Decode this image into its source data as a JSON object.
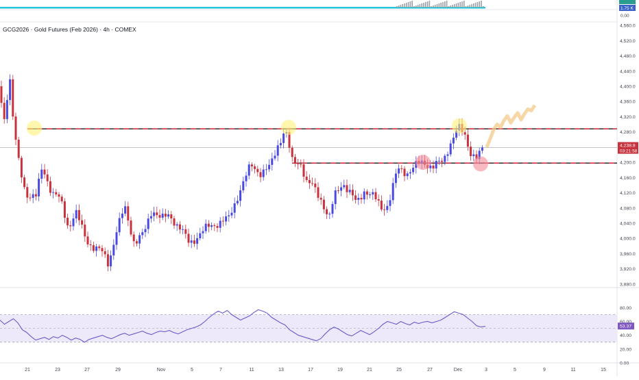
{
  "title": "GCG2026 · Gold Futures (Feb 2026) · 4h · COMEX",
  "colors": {
    "up": "#4a4ae0",
    "down": "#c8323c",
    "level_line": "#c8323c",
    "rsi_line": "#6a5acd",
    "rsi_band": "#ede9fb",
    "highlight_yellow": "#fff176",
    "highlight_red": "#f48c96",
    "forecast": "#f5c98a",
    "volume_teal": "#26c6da",
    "price_badge": "#c8323c",
    "rsi_badge": "#7e57c2",
    "volume_badge": "#3a62c8"
  },
  "volume_panel": {
    "labels": [
      "1.75 K",
      "0.00"
    ]
  },
  "price_axis": {
    "ticks": [
      "4,560.0",
      "4,520.0",
      "4,480.0",
      "4,440.0",
      "4,400.0",
      "4,360.0",
      "4,320.0",
      "4,280.0",
      "4,240.0",
      "4,200.0",
      "4,160.0",
      "4,120.0",
      "4,080.0",
      "4,040.0",
      "4,000.0",
      "3,960.0",
      "3,920.0",
      "3,880.0"
    ]
  },
  "current_price": {
    "value": "4,238.8",
    "countdown": "03:21:58"
  },
  "rsi_panel": {
    "ticks": [
      "80.00",
      "60.00",
      "40.00",
      "20.00",
      "0.00"
    ],
    "current": "53.37",
    "upper_band": 70,
    "lower_band": 30
  },
  "time_axis": {
    "labels": [
      "21",
      "23",
      "27",
      "29",
      "Nov",
      "5",
      "7",
      "11",
      "13",
      "17",
      "19",
      "21",
      "25",
      "27",
      "Dec",
      "3",
      "5",
      "9",
      "11",
      "15"
    ]
  },
  "chart_data": {
    "type": "candlestick",
    "title": "GCG2026 · Gold Futures (Feb 2026) · 4h · COMEX",
    "ylim": [
      3860,
      4580
    ],
    "levels": [
      {
        "price": 4288
      },
      {
        "price": 4198
      }
    ],
    "key_points": [
      {
        "date": "Oct 21",
        "price": 4290
      },
      {
        "date": "Oct 29",
        "price": 3934
      },
      {
        "date": "Nov 14",
        "price": 4290
      },
      {
        "date": "Nov 18",
        "price": 4040
      },
      {
        "date": "Nov 27",
        "price": 4198
      },
      {
        "date": "Dec 1",
        "price": 4292
      },
      {
        "date": "Dec 2",
        "price": 4196
      },
      {
        "date": "Dec 3",
        "price": 4238.8
      }
    ],
    "forecast_path_prices": [
      4240,
      4262,
      4286,
      4300,
      4292,
      4310,
      4322,
      4304,
      4318,
      4330,
      4312,
      4328,
      4340,
      4336,
      4350
    ],
    "rsi_values": [
      62,
      56,
      60,
      64,
      58,
      48,
      44,
      38,
      33,
      35,
      37,
      34,
      38,
      36,
      40,
      37,
      33,
      36,
      34,
      30,
      34,
      36,
      38,
      40,
      37,
      35,
      38,
      41,
      43,
      40,
      42,
      44,
      46,
      43,
      41,
      44,
      46,
      45,
      47,
      44,
      42,
      45,
      48,
      50,
      52,
      55,
      60,
      66,
      71,
      75,
      72,
      76,
      70,
      66,
      62,
      65,
      68,
      73,
      77,
      75,
      72,
      66,
      62,
      58,
      55,
      48,
      44,
      40,
      38,
      36,
      34,
      32,
      35,
      42,
      48,
      52,
      49,
      45,
      41,
      39,
      43,
      47,
      44,
      41,
      45,
      50,
      56,
      60,
      58,
      56,
      60,
      57,
      55,
      59,
      57,
      59,
      60,
      58,
      60,
      62,
      66,
      70,
      74,
      72,
      70,
      65,
      60,
      54,
      52,
      53
    ]
  }
}
